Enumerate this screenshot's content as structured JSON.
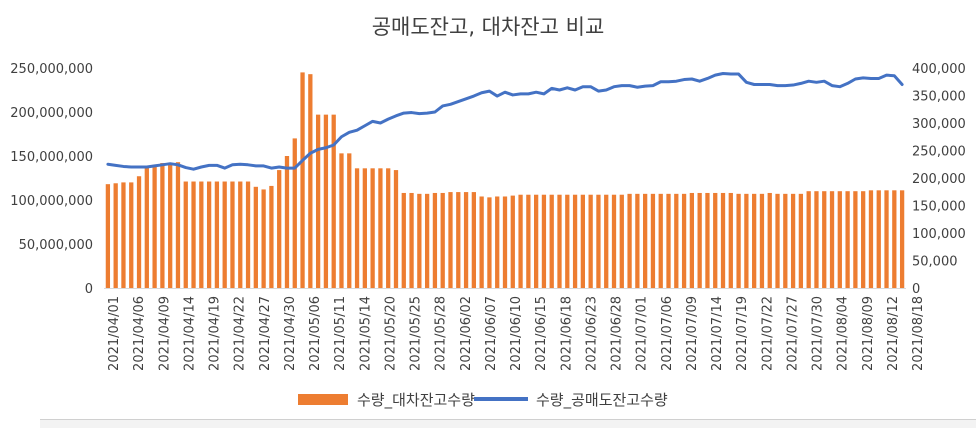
{
  "chart_data": {
    "type": "bar+line",
    "title": "공매도잔고, 대차잔고 비교",
    "xlabel": "",
    "ylabel": "",
    "y_left": {
      "lim": [
        0,
        250000000
      ],
      "ticks": [
        0,
        50000000,
        100000000,
        150000000,
        200000000,
        250000000
      ],
      "tick_labels": [
        "0",
        "50,000,000",
        "100,000,000",
        "150,000,000",
        "200,000,000",
        "250,000,000"
      ]
    },
    "y_right": {
      "lim": [
        0,
        400000
      ],
      "ticks": [
        0,
        50000,
        100000,
        150000,
        200000,
        250000,
        300000,
        350000,
        400000
      ],
      "tick_labels": [
        "0",
        "50,000",
        "100,000",
        "150,000",
        "200,000",
        "250,000",
        "300,000",
        "350,000",
        "400,000"
      ]
    },
    "x_tick_labels": [
      "2021/04/01",
      "2021/04/06",
      "2021/04/09",
      "2021/04/14",
      "2021/04/19",
      "2021/04/22",
      "2021/04/27",
      "2021/04/30",
      "2021/05/06",
      "2021/05/11",
      "2021/05/14",
      "2021/05/20",
      "2021/05/25",
      "2021/05/28",
      "2021/06/02",
      "2021/06/07",
      "2021/06/10",
      "2021/06/15",
      "2021/06/18",
      "2021/06/23",
      "2021/06/28",
      "2021/07/01",
      "2021/07/06",
      "2021/07/09",
      "2021/07/14",
      "2021/07/19",
      "2021/07/22",
      "2021/07/27",
      "2021/07/30",
      "2021/08/04",
      "2021/08/09",
      "2021/08/12",
      "2021/08/18"
    ],
    "grid": false,
    "legend_position": "bottom",
    "series": [
      {
        "name": "수량_대차잔고수량",
        "kind": "bar",
        "axis": "left",
        "color": "#ED7D31",
        "values": [
          118000000,
          119000000,
          120000000,
          120000000,
          127000000,
          137000000,
          140000000,
          142000000,
          140000000,
          143000000,
          121000000,
          121000000,
          121000000,
          121000000,
          121000000,
          121000000,
          121000000,
          121000000,
          121000000,
          115000000,
          112000000,
          116000000,
          134000000,
          150000000,
          170000000,
          245000000,
          243000000,
          197000000,
          197000000,
          197000000,
          153000000,
          153000000,
          136000000,
          136000000,
          136000000,
          136000000,
          136000000,
          134000000,
          108000000,
          108000000,
          107000000,
          107000000,
          108000000,
          108000000,
          109000000,
          109000000,
          109000000,
          109000000,
          104000000,
          103000000,
          104000000,
          104000000,
          105000000,
          106000000,
          106000000,
          106000000,
          106000000,
          106000000,
          106000000,
          106000000,
          106000000,
          106000000,
          106000000,
          106000000,
          106000000,
          106000000,
          106000000,
          107000000,
          107000000,
          107000000,
          107000000,
          107000000,
          107000000,
          107000000,
          107000000,
          108000000,
          108000000,
          108000000,
          108000000,
          108000000,
          108000000,
          107000000,
          107000000,
          107000000,
          107000000,
          108000000,
          107000000,
          107000000,
          107000000,
          107000000,
          110000000,
          110000000,
          110000000,
          110000000,
          110000000,
          110000000,
          110000000,
          110000000,
          111000000,
          111000000,
          111000000,
          111000000,
          111000000
        ]
      },
      {
        "name": "수량_공매도잔고수량",
        "kind": "line",
        "axis": "right",
        "color": "#4472C4",
        "values": [
          225000,
          223000,
          221000,
          220000,
          220000,
          220000,
          222000,
          224000,
          226000,
          224000,
          219000,
          216000,
          220000,
          223000,
          223000,
          218000,
          224000,
          225000,
          224000,
          222000,
          222000,
          218000,
          220000,
          218000,
          218000,
          232000,
          245000,
          252000,
          255000,
          260000,
          275000,
          283000,
          287000,
          295000,
          303000,
          300000,
          307000,
          313000,
          318000,
          319000,
          317000,
          318000,
          320000,
          331000,
          334000,
          339000,
          344000,
          349000,
          355000,
          358000,
          349000,
          356000,
          351000,
          353000,
          353000,
          356000,
          353000,
          363000,
          360000,
          364000,
          360000,
          366000,
          366000,
          358000,
          360000,
          366000,
          368000,
          368000,
          365000,
          367000,
          368000,
          375000,
          375000,
          376000,
          379000,
          380000,
          376000,
          381000,
          387000,
          390000,
          389000,
          389000,
          374000,
          370000,
          370000,
          370000,
          368000,
          368000,
          369000,
          372000,
          376000,
          374000,
          376000,
          368000,
          366000,
          372000,
          380000,
          382000,
          381000,
          381000,
          387000,
          386000,
          370000
        ]
      }
    ]
  }
}
